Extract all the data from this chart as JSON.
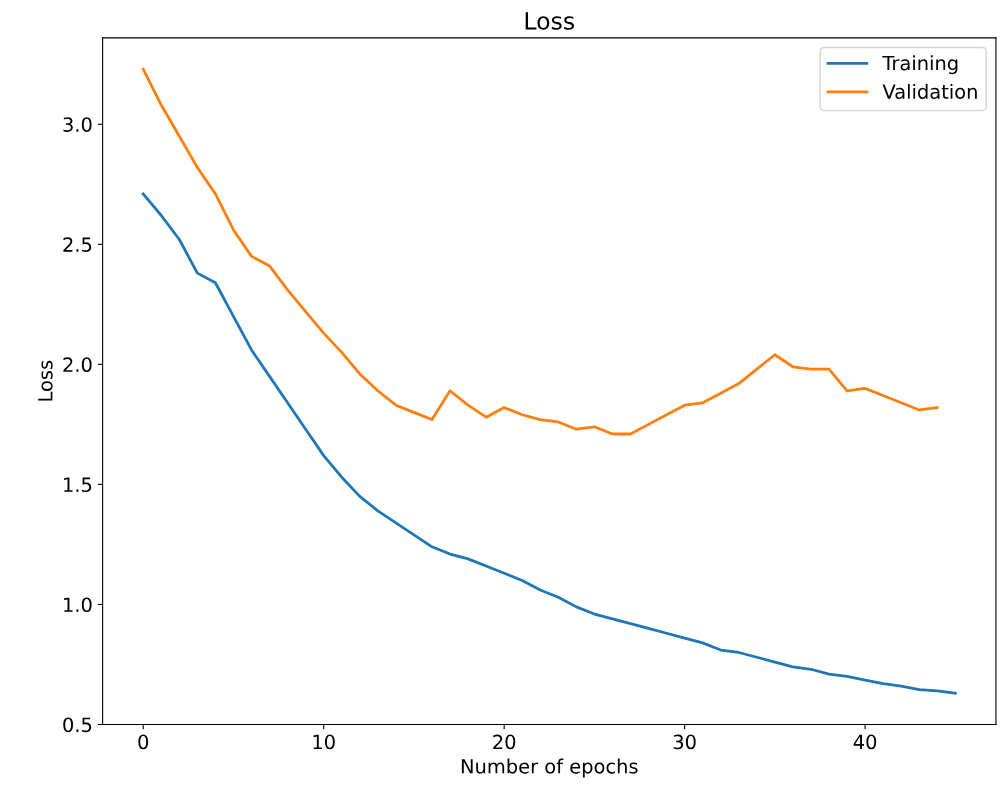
{
  "chart_data": {
    "type": "line",
    "title": "Loss",
    "xlabel": "Number of epochs",
    "ylabel": "Loss",
    "xlim": [
      -2.25,
      47.25
    ],
    "xticks": [
      0,
      10,
      20,
      30,
      40
    ],
    "ylim": [
      0.5,
      3.36
    ],
    "yticks": [
      {
        "value": 0.5,
        "label": "0.5"
      },
      {
        "value": 1.0,
        "label": "1.0"
      },
      {
        "value": 1.5,
        "label": "1.5"
      },
      {
        "value": 2.0,
        "label": "2.0"
      },
      {
        "value": 2.5,
        "label": "2.5"
      },
      {
        "value": 3.0,
        "label": "3.0"
      }
    ],
    "grid": false,
    "legend": "top right",
    "marker": "none",
    "line_style": "solid",
    "series": [
      {
        "name": "Training",
        "color": "#1f77b4",
        "x": [
          0,
          1,
          2,
          3,
          4,
          5,
          6,
          7,
          8,
          9,
          10,
          11,
          12,
          13,
          14,
          15,
          16,
          17,
          18,
          19,
          20,
          21,
          22,
          23,
          24,
          25,
          26,
          27,
          28,
          29,
          30,
          31,
          32,
          33,
          34,
          35,
          36,
          37,
          38,
          39,
          40,
          41,
          42,
          43,
          44,
          45
        ],
        "values": [
          2.71,
          2.62,
          2.52,
          2.38,
          2.34,
          2.2,
          2.06,
          1.95,
          1.84,
          1.73,
          1.62,
          1.53,
          1.45,
          1.39,
          1.34,
          1.29,
          1.24,
          1.21,
          1.19,
          1.16,
          1.13,
          1.1,
          1.06,
          1.03,
          0.99,
          0.96,
          0.94,
          0.92,
          0.9,
          0.88,
          0.86,
          0.84,
          0.81,
          0.8,
          0.78,
          0.76,
          0.74,
          0.73,
          0.71,
          0.7,
          0.685,
          0.67,
          0.66,
          0.645,
          0.64,
          0.63
        ]
      },
      {
        "name": "Validation",
        "color": "#ff7f0e",
        "x": [
          0,
          1,
          2,
          3,
          4,
          5,
          6,
          7,
          8,
          9,
          10,
          11,
          12,
          13,
          14,
          15,
          16,
          17,
          18,
          19,
          20,
          21,
          22,
          23,
          24,
          25,
          26,
          27,
          28,
          29,
          30,
          31,
          32,
          33,
          34,
          35,
          36,
          37,
          38,
          39,
          40,
          41,
          42,
          43,
          44
        ],
        "values": [
          3.23,
          3.08,
          2.95,
          2.82,
          2.71,
          2.56,
          2.45,
          2.41,
          2.31,
          2.22,
          2.13,
          2.05,
          1.96,
          1.89,
          1.83,
          1.8,
          1.77,
          1.89,
          1.83,
          1.78,
          1.82,
          1.79,
          1.77,
          1.76,
          1.73,
          1.74,
          1.71,
          1.71,
          1.75,
          1.79,
          1.83,
          1.84,
          1.88,
          1.92,
          1.98,
          2.04,
          1.99,
          1.98,
          1.98,
          1.89,
          1.9,
          1.87,
          1.84,
          1.81,
          1.82
        ]
      }
    ]
  }
}
